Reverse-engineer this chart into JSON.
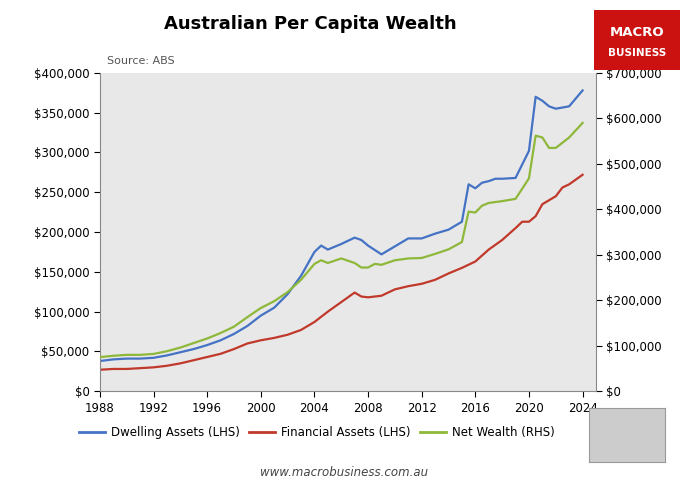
{
  "title": "Australian Per Capita Wealth",
  "source": "Source: ABS",
  "website": "www.macrobusiness.com.au",
  "xlim": [
    1988,
    2025
  ],
  "lhs_ylim": [
    0,
    400000
  ],
  "rhs_ylim": [
    0,
    700000
  ],
  "lhs_yticks": [
    0,
    50000,
    100000,
    150000,
    200000,
    250000,
    300000,
    350000,
    400000
  ],
  "rhs_yticks": [
    0,
    100000,
    200000,
    300000,
    400000,
    500000,
    600000,
    700000
  ],
  "xticks": [
    1988,
    1992,
    1996,
    2000,
    2004,
    2008,
    2012,
    2016,
    2020,
    2024
  ],
  "dwelling_color": "#4472C4",
  "financial_color": "#C0392B",
  "netwealth_color": "#8DB83A",
  "background_color": "#E8E8E8",
  "macro_box_color": "#CC1111",
  "dwelling_x": [
    1988,
    1989,
    1990,
    1991,
    1992,
    1993,
    1994,
    1995,
    1996,
    1997,
    1998,
    1999,
    2000,
    2001,
    2002,
    2003,
    2004,
    2004.5,
    2005,
    2006,
    2007,
    2007.5,
    2008,
    2009,
    2010,
    2011,
    2012,
    2013,
    2014,
    2015,
    2015.5,
    2016,
    2016.5,
    2017,
    2017.5,
    2018,
    2019,
    2020,
    2020.5,
    2021,
    2021.5,
    2022,
    2023,
    2024
  ],
  "dwelling_y": [
    38000,
    40000,
    41000,
    41000,
    42000,
    45000,
    49000,
    53000,
    58000,
    64000,
    72000,
    82000,
    95000,
    105000,
    122000,
    145000,
    175000,
    183000,
    178000,
    185000,
    193000,
    190000,
    183000,
    172000,
    182000,
    192000,
    192000,
    198000,
    203000,
    213000,
    260000,
    255000,
    262000,
    264000,
    267000,
    267000,
    268000,
    302000,
    370000,
    365000,
    358000,
    355000,
    358000,
    378000
  ],
  "financial_x": [
    1988,
    1989,
    1990,
    1991,
    1992,
    1993,
    1994,
    1995,
    1996,
    1997,
    1998,
    1999,
    2000,
    2001,
    2002,
    2003,
    2004,
    2005,
    2006,
    2007,
    2007.5,
    2008,
    2009,
    2010,
    2011,
    2012,
    2013,
    2014,
    2015,
    2016,
    2017,
    2018,
    2019,
    2019.5,
    2020,
    2020.5,
    2021,
    2022,
    2022.5,
    2023,
    2024
  ],
  "financial_y": [
    27000,
    28000,
    28000,
    29000,
    30000,
    32000,
    35000,
    39000,
    43000,
    47000,
    53000,
    60000,
    64000,
    67000,
    71000,
    77000,
    87000,
    100000,
    112000,
    124000,
    119000,
    118000,
    120000,
    128000,
    132000,
    135000,
    140000,
    148000,
    155000,
    163000,
    178000,
    190000,
    205000,
    213000,
    213000,
    220000,
    235000,
    245000,
    256000,
    260000,
    272000
  ],
  "netwealth_x": [
    1988,
    1989,
    1990,
    1991,
    1992,
    1993,
    1994,
    1995,
    1996,
    1997,
    1998,
    1999,
    2000,
    2001,
    2002,
    2003,
    2004,
    2004.5,
    2005,
    2006,
    2007,
    2007.5,
    2008,
    2008.5,
    2009,
    2010,
    2011,
    2012,
    2013,
    2014,
    2015,
    2015.5,
    2016,
    2016.5,
    2017,
    2018,
    2019,
    2020,
    2020.5,
    2021,
    2021.5,
    2022,
    2023,
    2024
  ],
  "netwealth_y": [
    75000,
    78000,
    80000,
    80000,
    82000,
    88000,
    96000,
    106000,
    116000,
    128000,
    142000,
    163000,
    183000,
    198000,
    218000,
    245000,
    280000,
    288000,
    282000,
    292000,
    282000,
    272000,
    272000,
    280000,
    278000,
    288000,
    292000,
    293000,
    302000,
    312000,
    328000,
    395000,
    393000,
    408000,
    414000,
    418000,
    423000,
    468000,
    562000,
    558000,
    535000,
    535000,
    558000,
    590000
  ]
}
